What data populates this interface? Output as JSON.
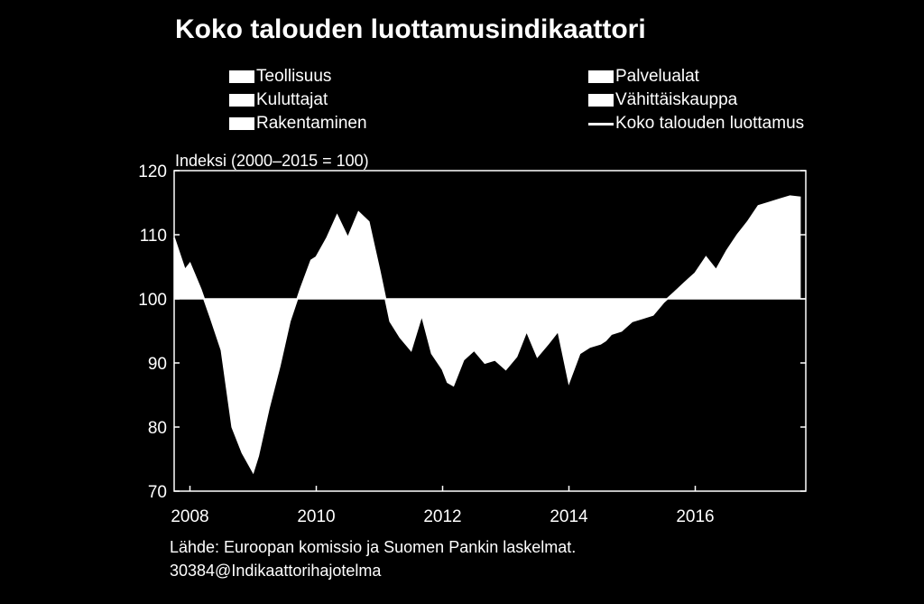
{
  "title": "Koko talouden luottamusindikaattori",
  "legend": [
    {
      "label": "Teollisuus",
      "style": "bar"
    },
    {
      "label": "Palvelualat",
      "style": "bar"
    },
    {
      "label": "Kuluttajat",
      "style": "bar"
    },
    {
      "label": "Vähittäiskauppa",
      "style": "bar"
    },
    {
      "label": "Rakentaminen",
      "style": "bar"
    },
    {
      "label": "Koko talouden luottamus",
      "style": "line"
    }
  ],
  "unit_label": "Indeksi (2000–2015 = 100)",
  "source": {
    "line1": "Lähde: Euroopan komissio ja Suomen Pankin laskelmat.",
    "line2": "30384@Indikaattorihajotelma"
  },
  "colors": {
    "background": "#000000",
    "foreground": "#ffffff"
  },
  "chart_data": {
    "type": "area",
    "title": "Koko talouden luottamusindikaattori",
    "ylabel": "Indeksi (2000–2015 = 100)",
    "xlim": [
      2007.75,
      2017.75
    ],
    "ylim": [
      70,
      120
    ],
    "baseline": 100,
    "yticks": [
      70,
      80,
      90,
      100,
      110,
      120
    ],
    "xticks": [
      2008,
      2010,
      2012,
      2014,
      2016
    ],
    "grid": false,
    "legend_position": "top",
    "series": [
      {
        "name": "Koko talouden luottamus",
        "x": [
          2007.75,
          2007.92,
          2008.0,
          2008.17,
          2008.33,
          2008.5,
          2008.67,
          2008.83,
          2009.0,
          2009.08,
          2009.25,
          2009.42,
          2009.58,
          2009.75,
          2009.92,
          2010.0,
          2010.17,
          2010.33,
          2010.5,
          2010.67,
          2010.83,
          2010.92,
          2011.0,
          2011.17,
          2011.33,
          2011.5,
          2011.67,
          2011.83,
          2012.0,
          2012.08,
          2012.17,
          2012.33,
          2012.5,
          2012.67,
          2012.83,
          2013.0,
          2013.17,
          2013.33,
          2013.5,
          2013.67,
          2013.83,
          2014.0,
          2014.17,
          2014.33,
          2014.5,
          2014.58,
          2014.67,
          2014.83,
          2015.0,
          2015.17,
          2015.33,
          2015.5,
          2015.67,
          2015.83,
          2016.0,
          2016.17,
          2016.33,
          2016.5,
          2016.67,
          2016.83,
          2017.0,
          2017.17,
          2017.33,
          2017.5,
          2017.67
        ],
        "values": [
          109.5,
          104.5,
          105.5,
          101.5,
          97.0,
          92.0,
          80.0,
          76.0,
          73.0,
          75.5,
          83.0,
          89.5,
          96.5,
          101.5,
          106.0,
          106.5,
          109.5,
          113.0,
          109.5,
          113.5,
          112.0,
          108.0,
          104.5,
          96.5,
          94.0,
          92.0,
          97.5,
          91.5,
          89.0,
          87.0,
          86.5,
          90.5,
          92.0,
          90.0,
          90.5,
          89.0,
          91.0,
          95.0,
          91.0,
          93.0,
          95.0,
          87.0,
          91.5,
          92.5,
          93.0,
          93.5,
          94.5,
          95.0,
          96.5,
          97.0,
          97.5,
          99.5,
          101.0,
          102.5,
          104.0,
          106.5,
          104.5,
          107.5,
          110.0,
          112.0,
          114.5,
          115.0,
          115.5,
          116.0,
          115.8
        ]
      }
    ]
  }
}
